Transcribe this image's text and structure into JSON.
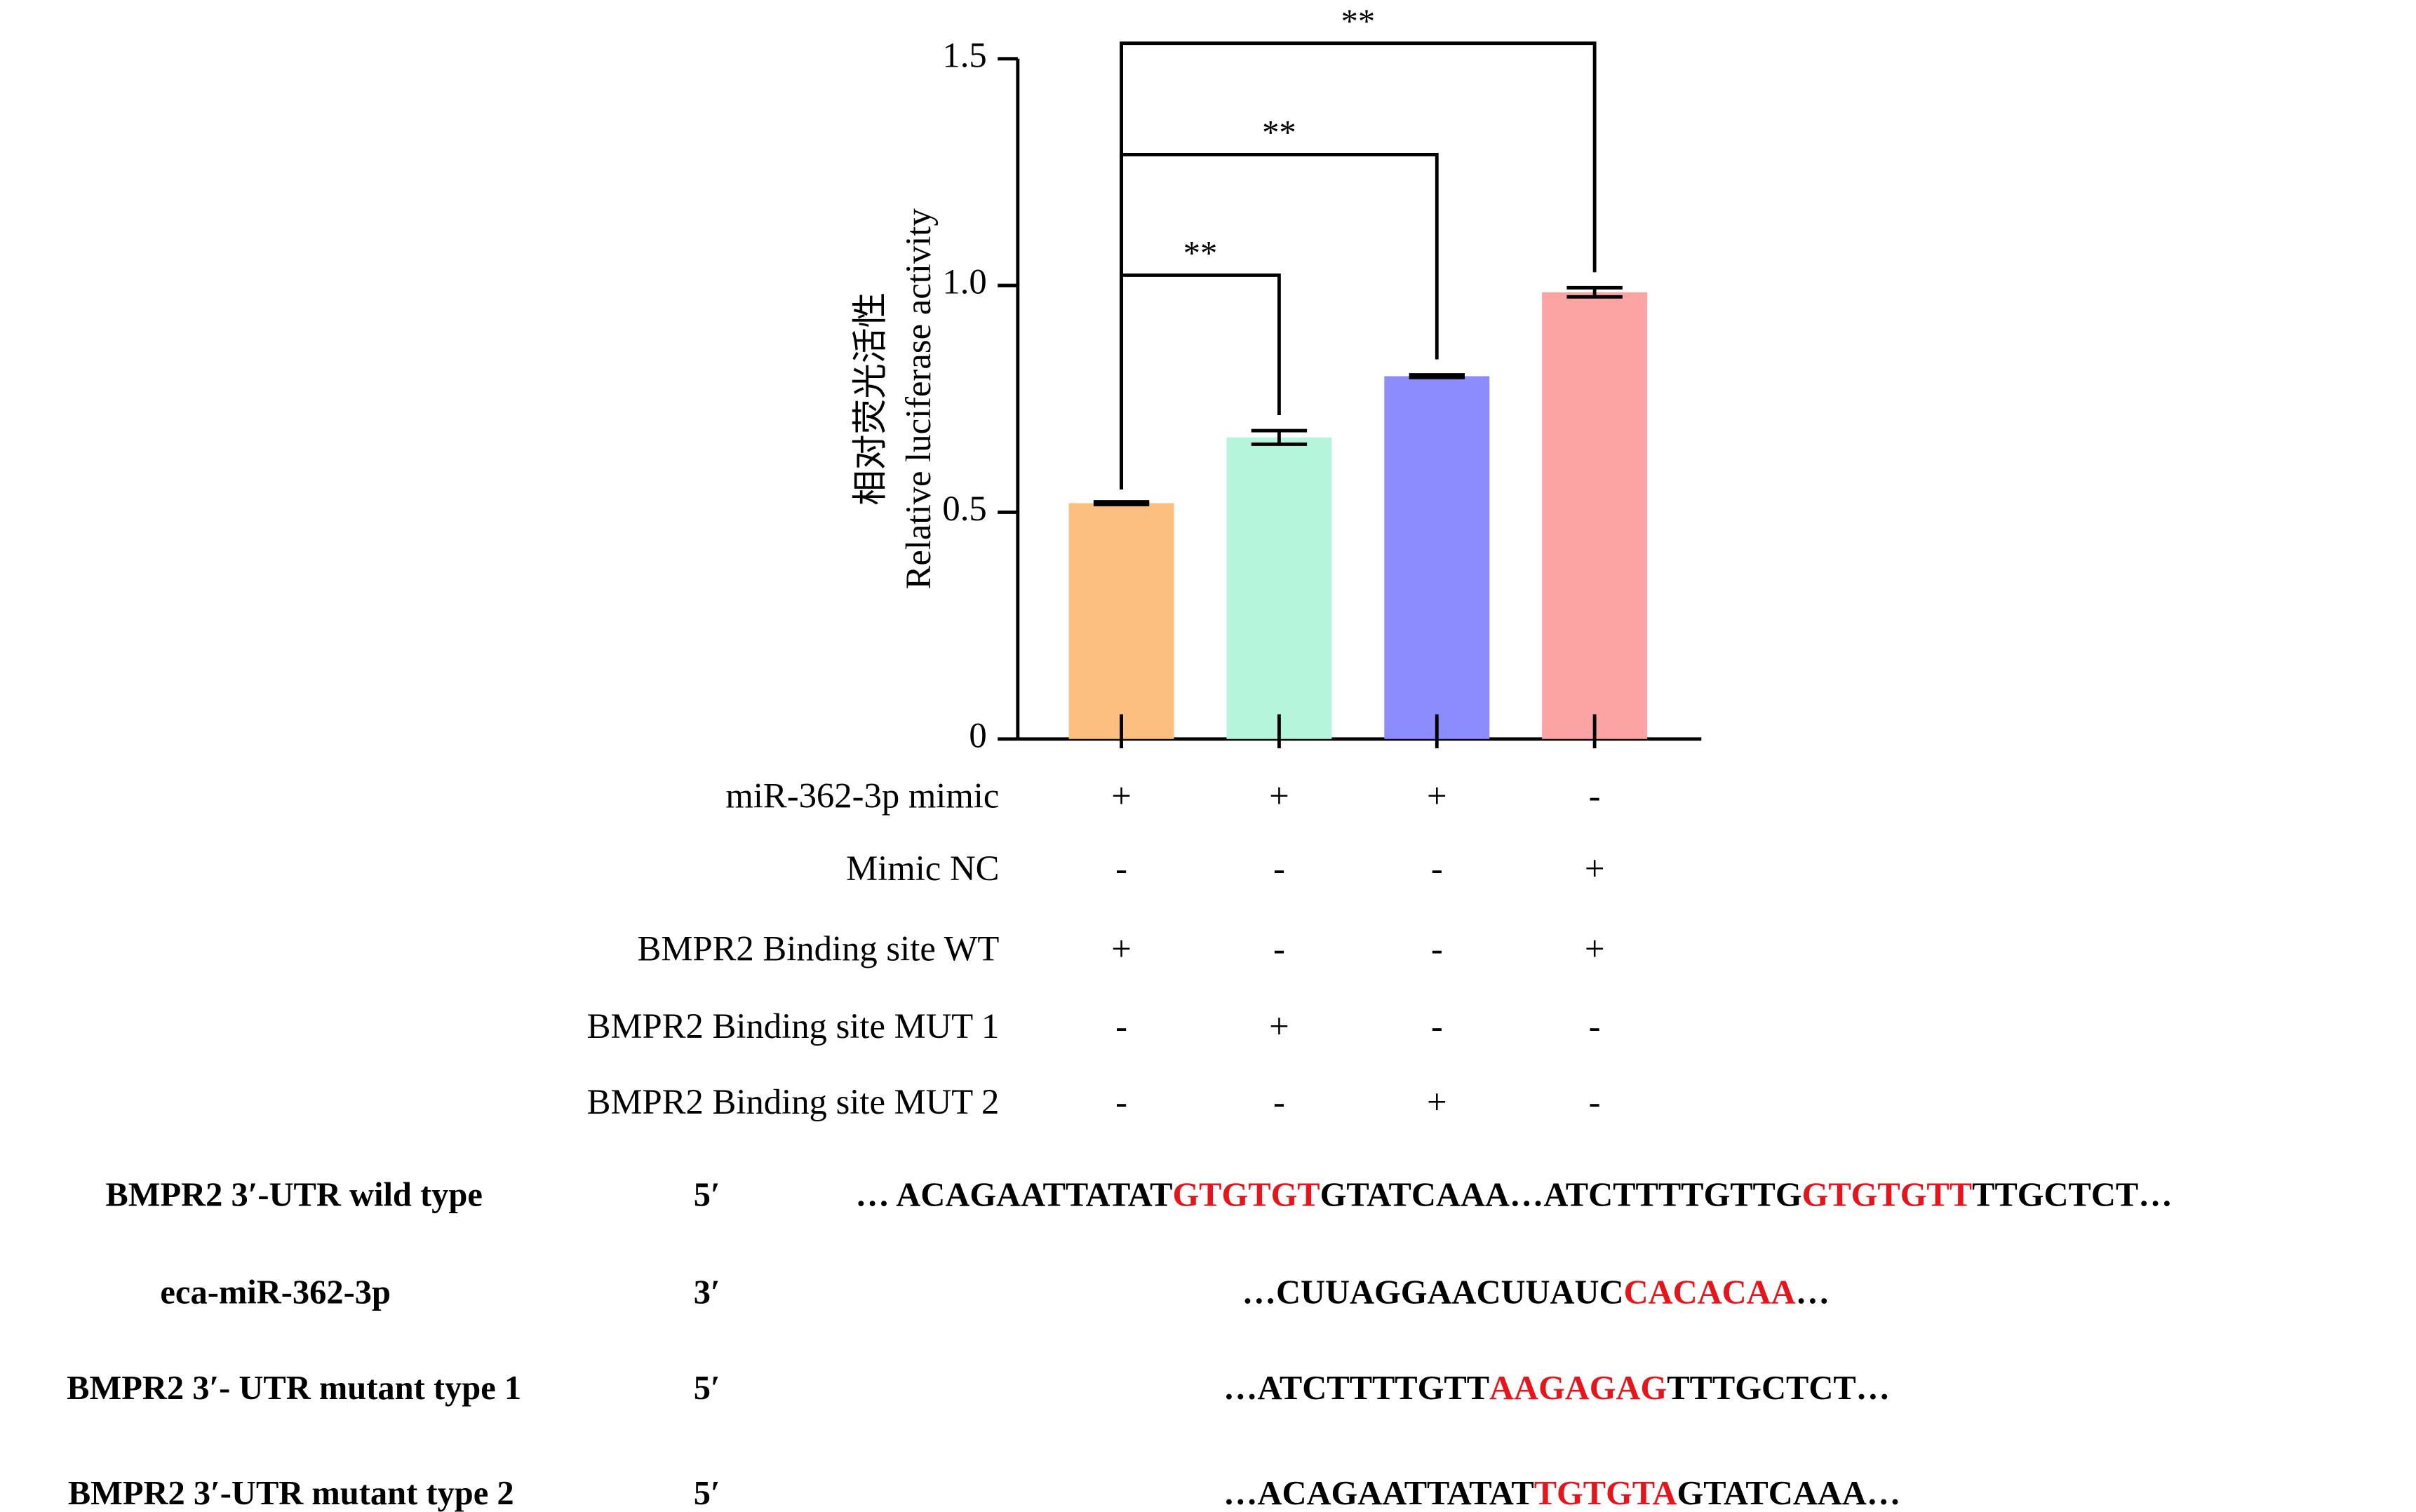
{
  "chart_data": {
    "type": "bar",
    "y_label_cn": "相对荧光活性",
    "y_label": "Relative luciferase activity",
    "categories": [
      null,
      null,
      null,
      null
    ],
    "values": [
      0.52,
      0.665,
      0.8,
      0.985
    ],
    "errors": [
      0.003,
      0.015,
      0.003,
      0.01
    ],
    "colors": [
      "#fdbf80",
      "#b4f5dc",
      "#8c8cff",
      "#fca3a3"
    ],
    "ylim": [
      0,
      1.5
    ],
    "yticks": [
      0,
      0.5,
      {
        "value": 1,
        "label": "1.0"
      },
      1.5
    ],
    "significance": [
      "**",
      "**",
      "**"
    ],
    "conditions": [
      {
        "label": "miR-362-3p mimic",
        "signs": [
          "+",
          "+",
          "+",
          "-"
        ]
      },
      {
        "label": "Mimic NC",
        "signs": [
          "-",
          "-",
          "-",
          "+"
        ]
      },
      {
        "label": "BMPR2 Binding site WT",
        "signs": [
          "+",
          "-",
          "-",
          "+"
        ]
      },
      {
        "label": "BMPR2 Binding site MUT 1",
        "signs": [
          "-",
          "+",
          "-",
          "-"
        ]
      },
      {
        "label": "BMPR2 Binding site MUT 2",
        "signs": [
          "-",
          "-",
          "+",
          "-"
        ]
      }
    ]
  },
  "sequence_alignment": {
    "highlight_color": "#e8141c",
    "rows": [
      {
        "name": "BMPR2 3′-UTR wild type",
        "end": "5′",
        "segments": [
          {
            "text": "… ACAGAATTATAT",
            "highlight": false
          },
          {
            "text": "GTGTGT",
            "highlight": true
          },
          {
            "text": "GTATCAAA…ATCTTTTGTTG",
            "highlight": false
          },
          {
            "text": "GTGTGTT",
            "highlight": true
          },
          {
            "text": "TTGCTCT…",
            "highlight": false
          }
        ]
      },
      {
        "name": "eca-miR-362-3p",
        "end": "3′",
        "segments": [
          {
            "text": "…CUUAGGAACUUAUC",
            "highlight": false
          },
          {
            "text": "CACACAA",
            "highlight": true
          },
          {
            "text": "…",
            "highlight": false
          }
        ]
      },
      {
        "name": "BMPR2 3′- UTR mutant type 1",
        "end": "5′",
        "segments": [
          {
            "text": "…ATCTTTTGTT",
            "highlight": false
          },
          {
            "text": "AAGAGAG",
            "highlight": true
          },
          {
            "text": "TTTGCTCT…",
            "highlight": false
          }
        ]
      },
      {
        "name": "BMPR2 3′-UTR mutant type 2",
        "end": "5′",
        "segments": [
          {
            "text": "…ACAGAATTATAT",
            "highlight": false
          },
          {
            "text": "TGTGTA",
            "highlight": true
          },
          {
            "text": "GTATCAAA…",
            "highlight": false
          }
        ]
      }
    ]
  }
}
